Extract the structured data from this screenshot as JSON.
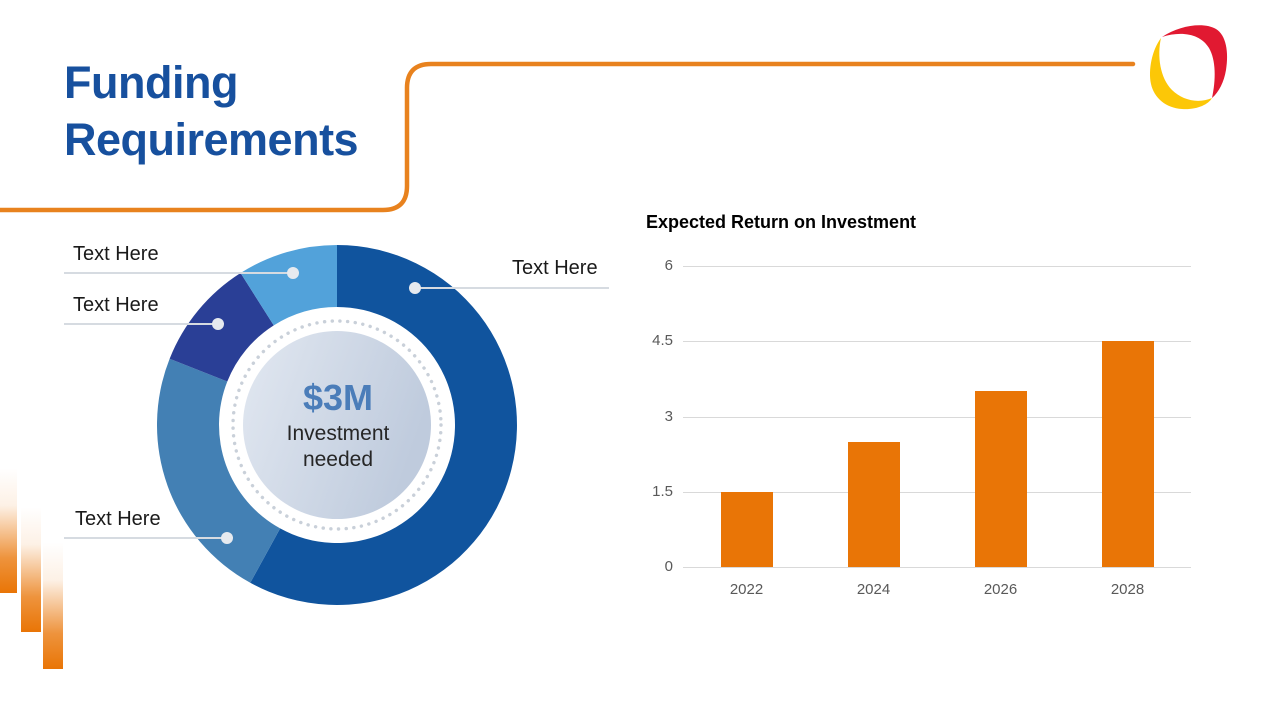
{
  "slide_title": "Funding Requirements",
  "theme": {
    "title_blue": "#17509E",
    "accent_orange": "#E8821E",
    "accent_orange_solid": "#E97506",
    "center_value_blue": "#4B7DB9",
    "gridline_gray": "#D9D9D9",
    "axis_text_gray": "#595959",
    "logo_red": "#E11931",
    "logo_yellow": "#FCC707"
  },
  "chart_data": [
    {
      "type": "donut",
      "center_value": "$3M",
      "center_label": "Investment needed",
      "start_angle_deg": 0,
      "direction": "clockwise",
      "segments": [
        {
          "label": "Text Here",
          "value": 58,
          "color": "#10549E",
          "callout": "right"
        },
        {
          "label": "Text Here",
          "value": 23,
          "color": "#4380B4",
          "callout": "bottom-left"
        },
        {
          "label": "Text Here",
          "value": 10,
          "color": "#2A3F96",
          "callout": "left"
        },
        {
          "label": "Text Here",
          "value": 9,
          "color": "#52A2DA",
          "callout": "top-left"
        }
      ]
    },
    {
      "type": "bar",
      "title": "Expected Return on Investment",
      "categories": [
        "2022",
        "2024",
        "2026",
        "2028"
      ],
      "values": [
        1.5,
        2.5,
        3.5,
        4.5
      ],
      "yticks": [
        0,
        1.5,
        3,
        4.5,
        6
      ],
      "ylim": [
        0,
        6
      ],
      "bar_color": "#E97506",
      "grid": true,
      "legend": "none"
    }
  ]
}
